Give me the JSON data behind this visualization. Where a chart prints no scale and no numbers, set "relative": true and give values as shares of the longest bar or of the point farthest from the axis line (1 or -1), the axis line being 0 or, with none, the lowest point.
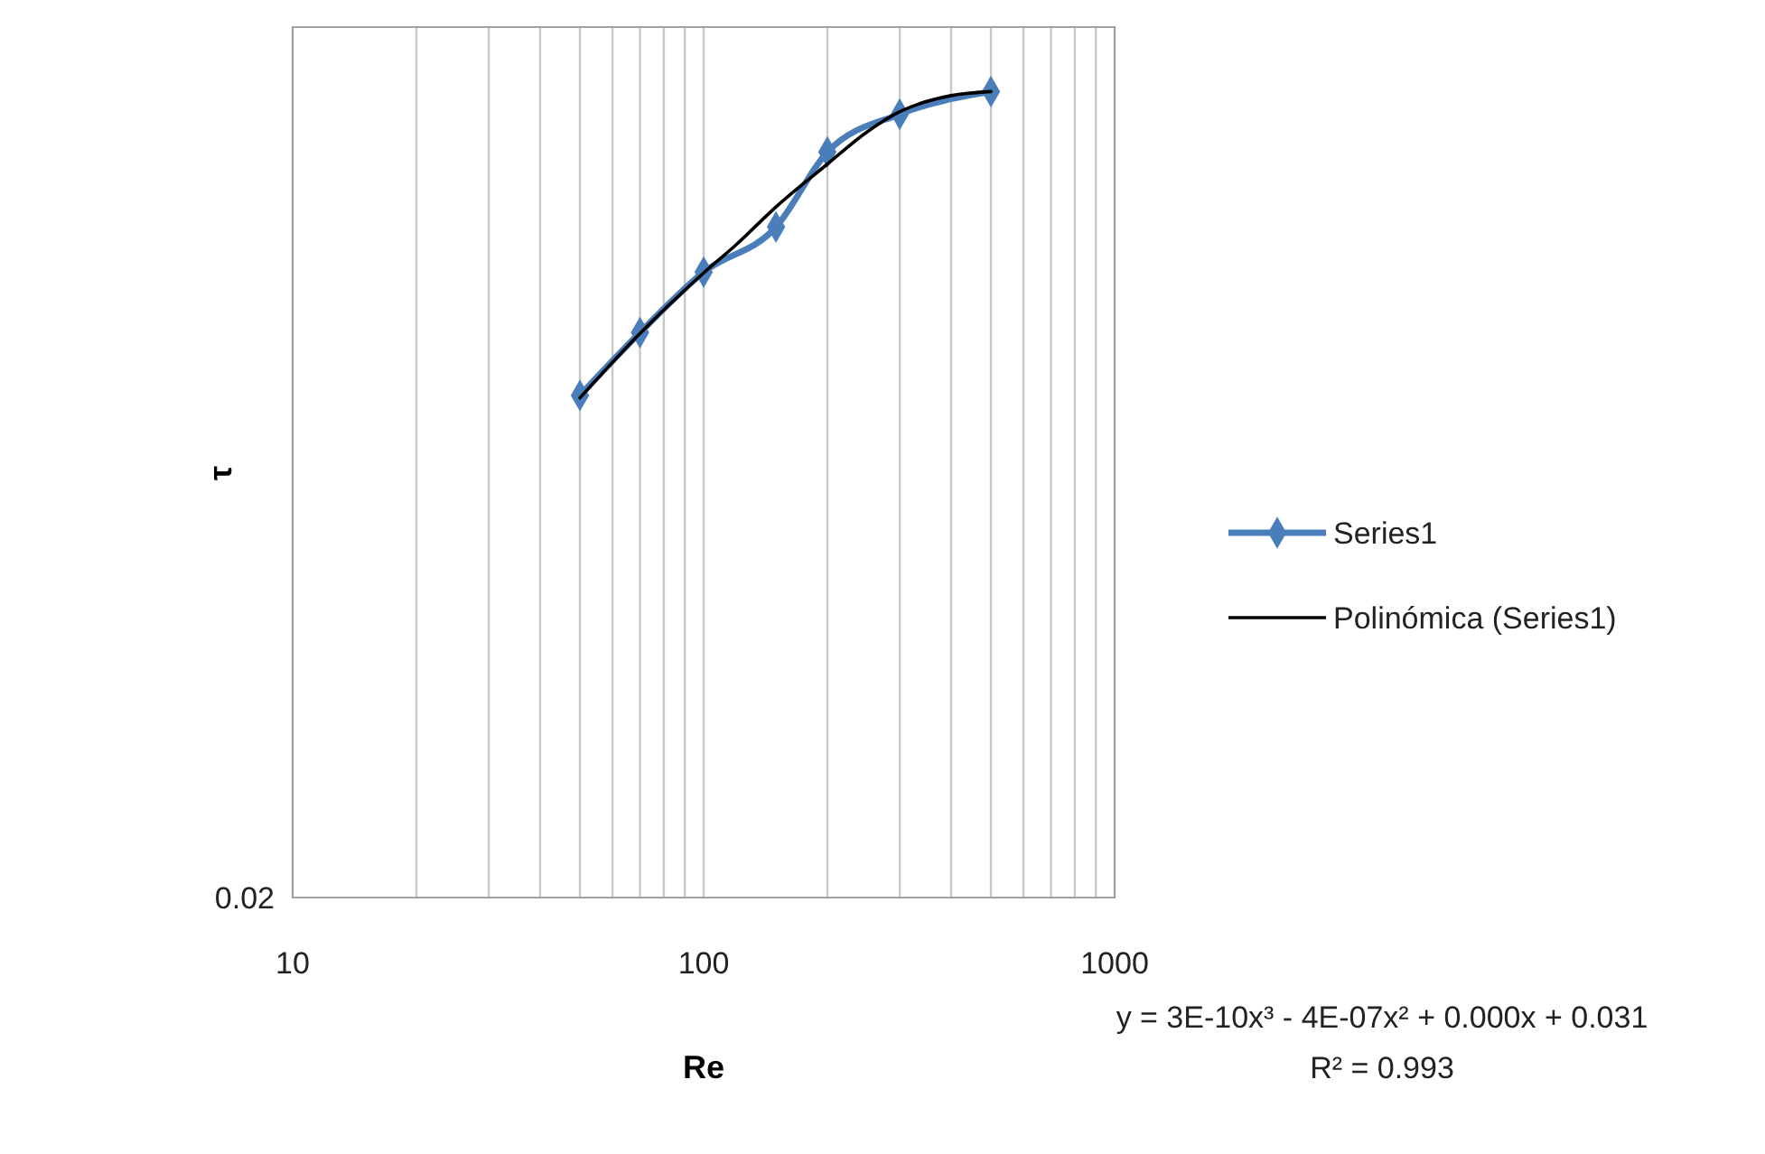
{
  "chart_data": {
    "type": "line",
    "xlabel": "Re",
    "ylabel": "τ",
    "relative": true,
    "log": "x",
    "grid": "x",
    "legend": "right",
    "marker": "diamond",
    "xlim": [
      10,
      1000
    ],
    "xticks": [
      10,
      {
        "value": 20,
        "label": null
      },
      {
        "value": 30,
        "label": null
      },
      {
        "value": 40,
        "label": null
      },
      {
        "value": 50,
        "label": null
      },
      {
        "value": 60,
        "label": null
      },
      {
        "value": 70,
        "label": null
      },
      {
        "value": 80,
        "label": null
      },
      {
        "value": 90,
        "label": null
      },
      100,
      {
        "value": 200,
        "label": null
      },
      {
        "value": 300,
        "label": null
      },
      {
        "value": 400,
        "label": null
      },
      {
        "value": 500,
        "label": null
      },
      {
        "value": 600,
        "label": null
      },
      {
        "value": 700,
        "label": null
      },
      {
        "value": 800,
        "label": null
      },
      {
        "value": 900,
        "label": null
      },
      1000
    ],
    "series": [
      {
        "name": "Series1",
        "color": "#4a7ebb",
        "x": [
          50,
          70,
          100,
          150,
          200,
          300,
          500
        ],
        "values": [
          0.623,
          0.701,
          0.776,
          0.832,
          0.925,
          0.972,
          1.0
        ]
      },
      {
        "name": "Polinómica (Series1)",
        "type": "line",
        "color": "#000000",
        "marker": "none",
        "x": [
          50,
          70,
          100,
          120,
          150,
          200,
          250,
          300,
          400,
          500
        ],
        "values": [
          0.62,
          0.7,
          0.775,
          0.81,
          0.857,
          0.91,
          0.95,
          0.975,
          0.995,
          1.0
        ]
      }
    ],
    "annotations": [
      "0.02",
      "y = 3E-10x³ - 4E-07x² + 0.000x + 0.031",
      "R² = 0.993"
    ]
  }
}
